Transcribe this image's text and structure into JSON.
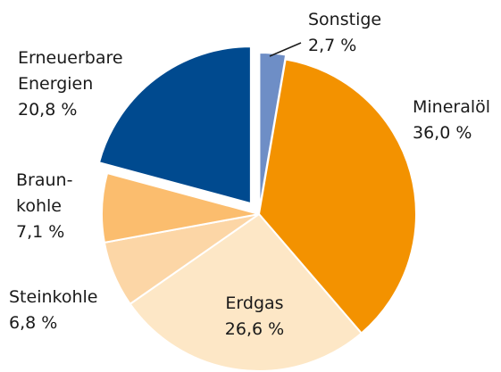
{
  "chart_data": {
    "type": "pie",
    "categories": [
      [
        "Sonstige"
      ],
      [
        "Mineralöl"
      ],
      [
        "Erdgas"
      ],
      [
        "Steinkohle"
      ],
      [
        "Braun-",
        "kohle"
      ],
      [
        "Erneuerbare",
        "Energien"
      ]
    ],
    "values": [
      2.7,
      36.0,
      26.6,
      6.8,
      7.1,
      20.8
    ],
    "value_labels": [
      "2,7 %",
      "36,0 %",
      "26,6 %",
      "6,8 %",
      "7,1 %",
      "20,8 %"
    ],
    "colors": [
      "#6e8ec6",
      "#f39200",
      "#fde7c6",
      "#fcd6a6",
      "#fbbd6e",
      "#004a8f"
    ],
    "exploded": [
      true,
      false,
      false,
      false,
      false,
      true
    ]
  }
}
